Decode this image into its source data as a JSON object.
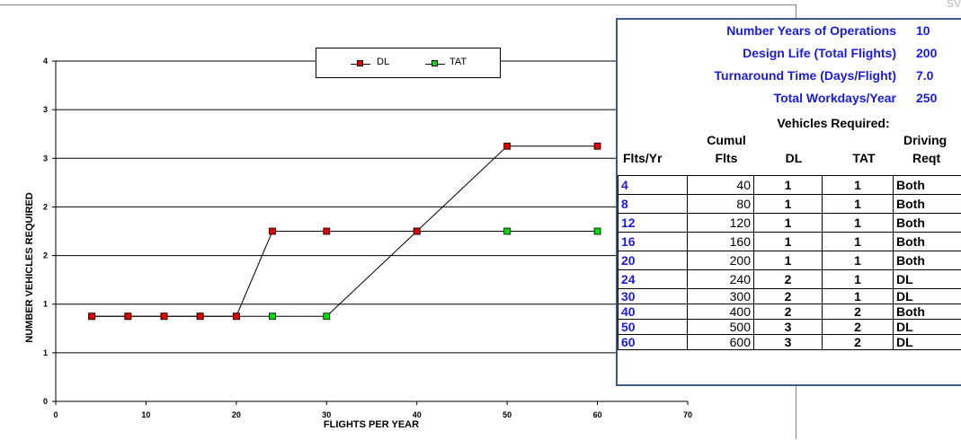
{
  "top_right_text": "SV",
  "chart_data": {
    "type": "line",
    "xlabel": "FLIGHTS PER YEAR",
    "ylabel": "NUMBER VEHICLES REQUIRED",
    "xlim": [
      0,
      70
    ],
    "ylim": [
      0,
      4
    ],
    "x_ticks": [
      "0",
      "10",
      "20",
      "30",
      "40",
      "50",
      "60",
      "70"
    ],
    "y_ticks": [
      "0",
      "1",
      "1",
      "2",
      "2",
      "3",
      "3",
      "4"
    ],
    "grid": "horizontal",
    "legend_position": "top-center",
    "x": [
      4,
      8,
      12,
      16,
      20,
      24,
      30,
      40,
      50,
      60
    ],
    "series": [
      {
        "name": "DL",
        "color": "#e00000",
        "values": [
          1,
          1,
          1,
          1,
          1,
          2,
          2,
          2,
          3,
          3
        ]
      },
      {
        "name": "TAT",
        "color": "#00dd00",
        "values": [
          1,
          1,
          1,
          1,
          1,
          1,
          1,
          2,
          2,
          2
        ]
      }
    ]
  },
  "params": [
    {
      "label": "Number Years of Operations",
      "value": "10"
    },
    {
      "label": "Design Life (Total Flights)",
      "value": "200"
    },
    {
      "label": "Turnaround Time (Days/Flight)",
      "value": "7.0"
    },
    {
      "label": "Total Workdays/Year",
      "value": "250"
    }
  ],
  "table": {
    "group_header": "Vehicles Required:",
    "headers": {
      "flts": "Flts/Yr",
      "cumul_top": "Cumul",
      "cumul_bottom": "Flts",
      "dl": "DL",
      "tat": "TAT",
      "driving_top": "Driving",
      "driving_bottom": "Reqt"
    },
    "rows": [
      {
        "flts": "4",
        "cumul": "40",
        "dl": "1",
        "tat": "1",
        "driving": "Both"
      },
      {
        "flts": "8",
        "cumul": "80",
        "dl": "1",
        "tat": "1",
        "driving": "Both"
      },
      {
        "flts": "12",
        "cumul": "120",
        "dl": "1",
        "tat": "1",
        "driving": "Both"
      },
      {
        "flts": "16",
        "cumul": "160",
        "dl": "1",
        "tat": "1",
        "driving": "Both"
      },
      {
        "flts": "20",
        "cumul": "200",
        "dl": "1",
        "tat": "1",
        "driving": "Both"
      },
      {
        "flts": "24",
        "cumul": "240",
        "dl": "2",
        "tat": "1",
        "driving": "DL"
      },
      {
        "flts": "30",
        "cumul": "300",
        "dl": "2",
        "tat": "1",
        "driving": "DL"
      },
      {
        "flts": "40",
        "cumul": "400",
        "dl": "2",
        "tat": "2",
        "driving": "Both"
      },
      {
        "flts": "50",
        "cumul": "500",
        "dl": "3",
        "tat": "2",
        "driving": "DL"
      },
      {
        "flts": "60",
        "cumul": "600",
        "dl": "3",
        "tat": "2",
        "driving": "DL"
      }
    ]
  }
}
